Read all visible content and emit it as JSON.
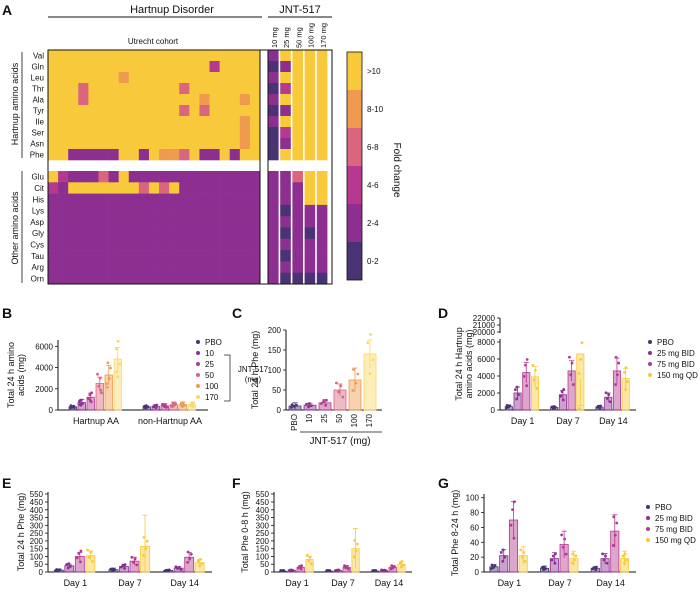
{
  "colors": {
    "dark": "#4a3375",
    "purple": "#8c2f91",
    "mauve": "#b4398f",
    "pink": "#d9657f",
    "orange": "#ef9a4e",
    "yellow": "#f8c93a",
    "light_yellow": "#fbd766"
  },
  "heatmap": {
    "panel_label": "A",
    "group_titles": [
      "Hartnup Disorder",
      "JNT-517"
    ],
    "cohort_label": "Utrecht cohort",
    "dose_labels": [
      "10 mg",
      "25 mg",
      "50 mg",
      "100 mg",
      "170 mg"
    ],
    "group_axis_labels": [
      "Hartnup amino acids",
      "Other amino acids"
    ],
    "rows": [
      "Val",
      "Gln",
      "Leu",
      "Thr",
      "Ala",
      "Tyr",
      "Ile",
      "Ser",
      "Asn",
      "Phe",
      "Glu",
      "Cit",
      "His",
      "Lys",
      "Asp",
      "Gly",
      "Cys",
      "Tau",
      "Arg",
      "Orn"
    ],
    "legend_title": "Fold change",
    "legend_labels": [
      ">10",
      "8-10",
      "6-8",
      "4-6",
      "2-4",
      "0-2"
    ],
    "levels_note": "cell values are fold-change bins: 0=0-2, 1=2-4, 2=4-6, 3=6-8, 4=8-10, 5=>10, -1=blank",
    "cohort_matrix": [
      "555555555555555555555",
      "555555555555555525555",
      "555555545555555555555",
      "555355555555535555555",
      "555355555555555455545",
      "555555555555535355555",
      "555555555555555555545",
      "555555555555555555545",
      "555555555555555555545",
      "551111155154435115155",
      "521113151111111111111",
      "215555555353511111111",
      "111111111111111111111",
      "111111111111111111111",
      "111111111111111111111",
      "111111111111111111111",
      "111111111111111111111",
      "111111111111111111111",
      "111111111111111111111",
      "111111111111111111111"
    ],
    "jnt_matrix": [
      "15555",
      "01555",
      "15555",
      "02555",
      "15555",
      "01555",
      "15555",
      "02555",
      "01555",
      "05555",
      "11355",
      "11155",
      "11155",
      "10111",
      "11111",
      "10101",
      "11111",
      "10111",
      "11111",
      "10000"
    ]
  },
  "panels": {
    "B": {
      "label": "B",
      "ylabel": "Total 24 h amino acids (mg)",
      "yticks": [
        "0",
        "2000",
        "4000",
        "6000"
      ],
      "groups": [
        "Hartnup AA",
        "non-Hartnup AA"
      ],
      "legend_series": [
        "PBO",
        "10",
        "25",
        "50",
        "100",
        "170"
      ],
      "legend_bracket": "JNT-517 (mg)"
    },
    "C": {
      "label": "C",
      "ylabel": "Total 24 h Phe (mg)",
      "yticks": [
        "0",
        "50",
        "100",
        "150",
        "200"
      ],
      "categories": [
        "PBO",
        "10",
        "25",
        "50",
        "100",
        "170"
      ],
      "xlabel": "JNT-517 (mg)"
    },
    "D": {
      "label": "D",
      "ylabel": "Total 24 h Hartnup amino acids (mg)",
      "yticks": [
        "0",
        "2000",
        "4000",
        "6000",
        "8000",
        "20000",
        "21000",
        "22000"
      ],
      "groups": [
        "Day 1",
        "Day 7",
        "Day 14"
      ],
      "legend": [
        "PBO",
        "25 mg BID",
        "75 mg BID",
        "150 mg QD"
      ]
    },
    "E": {
      "label": "E",
      "ylabel": "Total 24 h Phe (mg)",
      "yticks": [
        "0",
        "50",
        "100",
        "150",
        "200",
        "250",
        "300",
        "350",
        "400",
        "450",
        "550"
      ],
      "groups": [
        "Day 1",
        "Day 7",
        "Day 14"
      ]
    },
    "F": {
      "label": "F",
      "ylabel": "Total Phe 0-8 h (mg)",
      "yticks": [
        "0",
        "50",
        "100",
        "150",
        "200",
        "250",
        "300",
        "350",
        "400",
        "450",
        "550"
      ],
      "groups": [
        "Day 1",
        "Day 7",
        "Day 14"
      ]
    },
    "G": {
      "label": "G",
      "ylabel": "Total Phe 8-24 h (mg)",
      "yticks": [
        "0",
        "20",
        "40",
        "60",
        "80",
        "100"
      ],
      "groups": [
        "Day 1",
        "Day 7",
        "Day 14"
      ],
      "legend": [
        "PBO",
        "25 mg BID",
        "75 mg BID",
        "150 mg QD"
      ]
    }
  },
  "chart_data": [
    {
      "id": "B",
      "type": "bar",
      "title": "",
      "ylabel": "Total 24 h amino acids (mg)",
      "xlabel": "",
      "ylim": [
        0,
        6600
      ],
      "categories": [
        "Hartnup AA",
        "non-Hartnup AA"
      ],
      "series": [
        {
          "name": "PBO",
          "values": [
            300,
            300
          ],
          "err": [
            80,
            80
          ]
        },
        {
          "name": "10",
          "values": [
            700,
            350
          ],
          "err": [
            300,
            150
          ]
        },
        {
          "name": "25",
          "values": [
            1200,
            400
          ],
          "err": [
            400,
            200
          ]
        },
        {
          "name": "50",
          "values": [
            2500,
            500
          ],
          "err": [
            600,
            250
          ]
        },
        {
          "name": "100",
          "values": [
            3300,
            500
          ],
          "err": [
            900,
            250
          ]
        },
        {
          "name": "170",
          "values": [
            4800,
            500
          ],
          "err": [
            1100,
            250
          ]
        }
      ]
    },
    {
      "id": "C",
      "type": "bar",
      "title": "",
      "ylabel": "Total 24 h Phe (mg)",
      "xlabel": "JNT-517 (mg)",
      "ylim": [
        0,
        200
      ],
      "categories": [
        "PBO",
        "10",
        "25",
        "50",
        "100",
        "170"
      ],
      "values": [
        10,
        12,
        18,
        50,
        75,
        140
      ],
      "err": [
        8,
        5,
        8,
        15,
        30,
        35
      ]
    },
    {
      "id": "D",
      "type": "bar",
      "title": "",
      "ylabel": "Total 24 h Hartnup amino acids (mg)",
      "xlabel": "",
      "ylim": [
        0,
        9000
      ],
      "broken_axis": [
        9000,
        20000
      ],
      "categories": [
        "Day 1",
        "Day 7",
        "Day 14"
      ],
      "series": [
        {
          "name": "PBO",
          "values": [
            400,
            300,
            350
          ],
          "err": [
            200,
            150,
            200
          ]
        },
        {
          "name": "25 mg BID",
          "values": [
            2000,
            1800,
            1500
          ],
          "err": [
            700,
            500,
            500
          ]
        },
        {
          "name": "75 mg BID",
          "values": [
            4400,
            4600,
            4600
          ],
          "err": [
            1200,
            1200,
            1500
          ]
        },
        {
          "name": "150 mg QD",
          "values": [
            3900,
            6600,
            3700
          ],
          "err": [
            1200,
            2900,
            1200
          ]
        }
      ]
    },
    {
      "id": "E",
      "type": "bar",
      "title": "",
      "ylabel": "Total 24 h Phe (mg)",
      "xlabel": "",
      "ylim": [
        0,
        550
      ],
      "categories": [
        "Day 1",
        "Day 7",
        "Day 14"
      ],
      "series": [
        {
          "name": "PBO",
          "values": [
            12,
            15,
            10
          ],
          "err": [
            8,
            10,
            6
          ]
        },
        {
          "name": "25 mg BID",
          "values": [
            40,
            35,
            25
          ],
          "err": [
            10,
            15,
            8
          ]
        },
        {
          "name": "75 mg BID",
          "values": [
            100,
            70,
            95
          ],
          "err": [
            25,
            25,
            30
          ]
        },
        {
          "name": "150 mg QD",
          "values": [
            105,
            165,
            60
          ],
          "err": [
            30,
            200,
            20
          ]
        }
      ]
    },
    {
      "id": "F",
      "type": "bar",
      "title": "",
      "ylabel": "Total Phe 0-8 h (mg)",
      "xlabel": "",
      "ylim": [
        0,
        550
      ],
      "categories": [
        "Day 1",
        "Day 7",
        "Day 14"
      ],
      "series": [
        {
          "name": "PBO",
          "values": [
            5,
            5,
            5
          ],
          "err": [
            3,
            3,
            3
          ]
        },
        {
          "name": "25 mg BID",
          "values": [
            10,
            10,
            10
          ],
          "err": [
            5,
            5,
            5
          ]
        },
        {
          "name": "75 mg BID",
          "values": [
            30,
            30,
            30
          ],
          "err": [
            10,
            10,
            10
          ]
        },
        {
          "name": "150 mg QD",
          "values": [
            80,
            150,
            50
          ],
          "err": [
            20,
            130,
            15
          ]
        }
      ]
    },
    {
      "id": "G",
      "type": "bar",
      "title": "",
      "ylabel": "Total Phe 8-24 h (mg)",
      "xlabel": "",
      "ylim": [
        0,
        105
      ],
      "categories": [
        "Day 1",
        "Day 7",
        "Day 14"
      ],
      "series": [
        {
          "name": "PBO",
          "values": [
            7,
            5,
            5
          ],
          "err": [
            3,
            3,
            2
          ]
        },
        {
          "name": "25 mg BID",
          "values": [
            22,
            18,
            18
          ],
          "err": [
            8,
            8,
            7
          ]
        },
        {
          "name": "75 mg BID",
          "values": [
            70,
            37,
            55
          ],
          "err": [
            25,
            18,
            22
          ]
        },
        {
          "name": "150 mg QD",
          "values": [
            22,
            18,
            18
          ],
          "err": [
            12,
            10,
            10
          ]
        }
      ]
    }
  ]
}
